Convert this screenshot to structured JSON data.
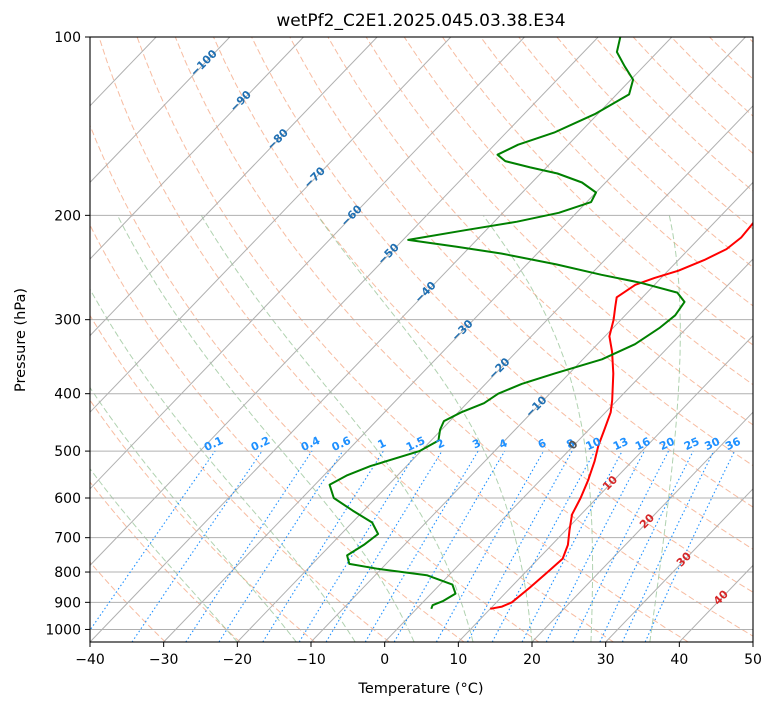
{
  "chart_data": {
    "type": "line",
    "subtype": "skew-t log-p diagram",
    "title": "wetPf2_C2E1.2025.045.03.38.E34",
    "xlabel": "Temperature (°C)",
    "ylabel": "Pressure (hPa)",
    "xlim": [
      -40,
      50
    ],
    "ylim": [
      1050,
      100
    ],
    "y_scale": "log",
    "x_ticks": [
      "−40",
      "−30",
      "−20",
      "−10",
      "0",
      "10",
      "20",
      "30",
      "40",
      "50"
    ],
    "x_tick_values": [
      -40,
      -30,
      -20,
      -10,
      0,
      10,
      20,
      30,
      40,
      50
    ],
    "y_ticks": [
      "100",
      "200",
      "300",
      "400",
      "500",
      "600",
      "700",
      "800",
      "900",
      "1000"
    ],
    "y_tick_values": [
      100,
      200,
      300,
      400,
      500,
      600,
      700,
      800,
      900,
      1000
    ],
    "grid": true,
    "series": [
      {
        "role": "temperature",
        "color": "#ff0000",
        "points": [
          [
            923,
            10
          ],
          [
            915,
            11.3
          ],
          [
            900,
            12.1
          ],
          [
            850,
            12.6
          ],
          [
            800,
            13.0
          ],
          [
            760,
            13.3
          ],
          [
            720,
            12.2
          ],
          [
            680,
            10.5
          ],
          [
            640,
            8.8
          ],
          [
            600,
            7.8
          ],
          [
            560,
            6.5
          ],
          [
            520,
            4.9
          ],
          [
            490,
            3.4
          ],
          [
            460,
            2.1
          ],
          [
            430,
            0.7
          ],
          [
            410,
            -0.7
          ],
          [
            395,
            -1.9
          ],
          [
            370,
            -4.0
          ],
          [
            340,
            -7.0
          ],
          [
            320,
            -9.4
          ],
          [
            300,
            -11.0
          ],
          [
            285,
            -12.5
          ],
          [
            275,
            -13.5
          ],
          [
            262,
            -12.6
          ],
          [
            255,
            -10.9
          ],
          [
            248,
            -8.6
          ],
          [
            238,
            -6.5
          ],
          [
            228,
            -4.9
          ],
          [
            218,
            -4.4
          ],
          [
            205,
            -4.7
          ],
          [
            190,
            -6.0
          ],
          [
            170,
            -8.4
          ],
          [
            150,
            -11.0
          ],
          [
            135,
            -14.5
          ],
          [
            125,
            -19.3
          ],
          [
            115,
            -22.7
          ],
          [
            110,
            -23.5
          ],
          [
            105,
            -25.3
          ],
          [
            100,
            -26.8
          ]
        ]
      },
      {
        "role": "dewpoint",
        "color": "#008000",
        "points": [
          [
            923,
            2.0
          ],
          [
            910,
            1.7
          ],
          [
            895,
            2.6
          ],
          [
            870,
            3.3
          ],
          [
            840,
            1.7
          ],
          [
            810,
            -3.0
          ],
          [
            790,
            -10.5
          ],
          [
            775,
            -15.0
          ],
          [
            750,
            -16.4
          ],
          [
            720,
            -15.5
          ],
          [
            690,
            -15.0
          ],
          [
            660,
            -17.3
          ],
          [
            630,
            -21.5
          ],
          [
            600,
            -25.7
          ],
          [
            570,
            -28.0
          ],
          [
            550,
            -26.9
          ],
          [
            530,
            -24.9
          ],
          [
            500,
            -20.2
          ],
          [
            480,
            -19.0
          ],
          [
            460,
            -20.2
          ],
          [
            445,
            -20.8
          ],
          [
            430,
            -19.6
          ],
          [
            415,
            -17.7
          ],
          [
            400,
            -17.0
          ],
          [
            385,
            -15.1
          ],
          [
            370,
            -12.0
          ],
          [
            350,
            -7.4
          ],
          [
            330,
            -4.9
          ],
          [
            310,
            -3.7
          ],
          [
            295,
            -3.2
          ],
          [
            280,
            -3.7
          ],
          [
            270,
            -5.9
          ],
          [
            260,
            -12.1
          ],
          [
            252,
            -18.5
          ],
          [
            242,
            -26.0
          ],
          [
            232,
            -34.9
          ],
          [
            226,
            -41.8
          ],
          [
            220,
            -49.3
          ],
          [
            212,
            -42.9
          ],
          [
            205,
            -36.9
          ],
          [
            198,
            -32.4
          ],
          [
            190,
            -29.4
          ],
          [
            183,
            -30.0
          ],
          [
            176,
            -33.2
          ],
          [
            170,
            -37.7
          ],
          [
            166,
            -42.2
          ],
          [
            162,
            -46.4
          ],
          [
            158,
            -48.3
          ],
          [
            152,
            -46.8
          ],
          [
            145,
            -43.5
          ],
          [
            135,
            -40.4
          ],
          [
            125,
            -38.3
          ],
          [
            118,
            -39.7
          ],
          [
            112,
            -42.6
          ],
          [
            106,
            -45.5
          ],
          [
            100,
            -47.0
          ]
        ]
      }
    ],
    "isotherm_labels": [
      "−100",
      "−90",
      "−80",
      "−70",
      "−60",
      "−50",
      "−40",
      "−30",
      "−20",
      "−10",
      "0",
      "10",
      "20",
      "30",
      "40"
    ],
    "isotherm_label_values": [
      -100,
      -90,
      -80,
      -70,
      -60,
      -50,
      -40,
      -30,
      -20,
      -10,
      0,
      10,
      20,
      30,
      40
    ],
    "mixing_ratio_labels": [
      "0.1",
      "0.2",
      "0.4",
      "0.6",
      "1",
      "1.5",
      "2",
      "3",
      "4",
      "6",
      "8",
      "10",
      "13",
      "16",
      "20",
      "25",
      "30",
      "36"
    ],
    "mixing_ratio_values": [
      0.1,
      0.2,
      0.4,
      0.6,
      1,
      1.5,
      2,
      3,
      4,
      6,
      8,
      10,
      13,
      16,
      20,
      25,
      30,
      36
    ],
    "dry_adiabat_thetas_K": [
      200,
      210,
      220,
      230,
      240,
      250,
      260,
      270,
      280,
      290,
      300,
      310,
      320,
      330,
      340,
      350,
      360,
      370,
      380,
      390,
      400,
      410,
      420,
      430,
      440,
      450,
      460,
      470,
      480,
      490,
      500
    ],
    "moist_adiabat_start_C": [
      -20,
      -12,
      -4,
      4,
      12,
      20,
      28,
      36
    ],
    "colors": {
      "temperature": "#ff0000",
      "dewpoint": "#008000",
      "isotherms": "#b0b0b0",
      "isobars": "#b0b0b0",
      "dry_adiabats": "#f4a582",
      "moist_adiabats": "#8fbf8f",
      "mixing_ratio": "#1e90ff",
      "isotherm_labels_cold": "#1f6fb2",
      "isotherm_labels_zero": "#555555",
      "isotherm_labels_warm": "#d62728"
    }
  }
}
